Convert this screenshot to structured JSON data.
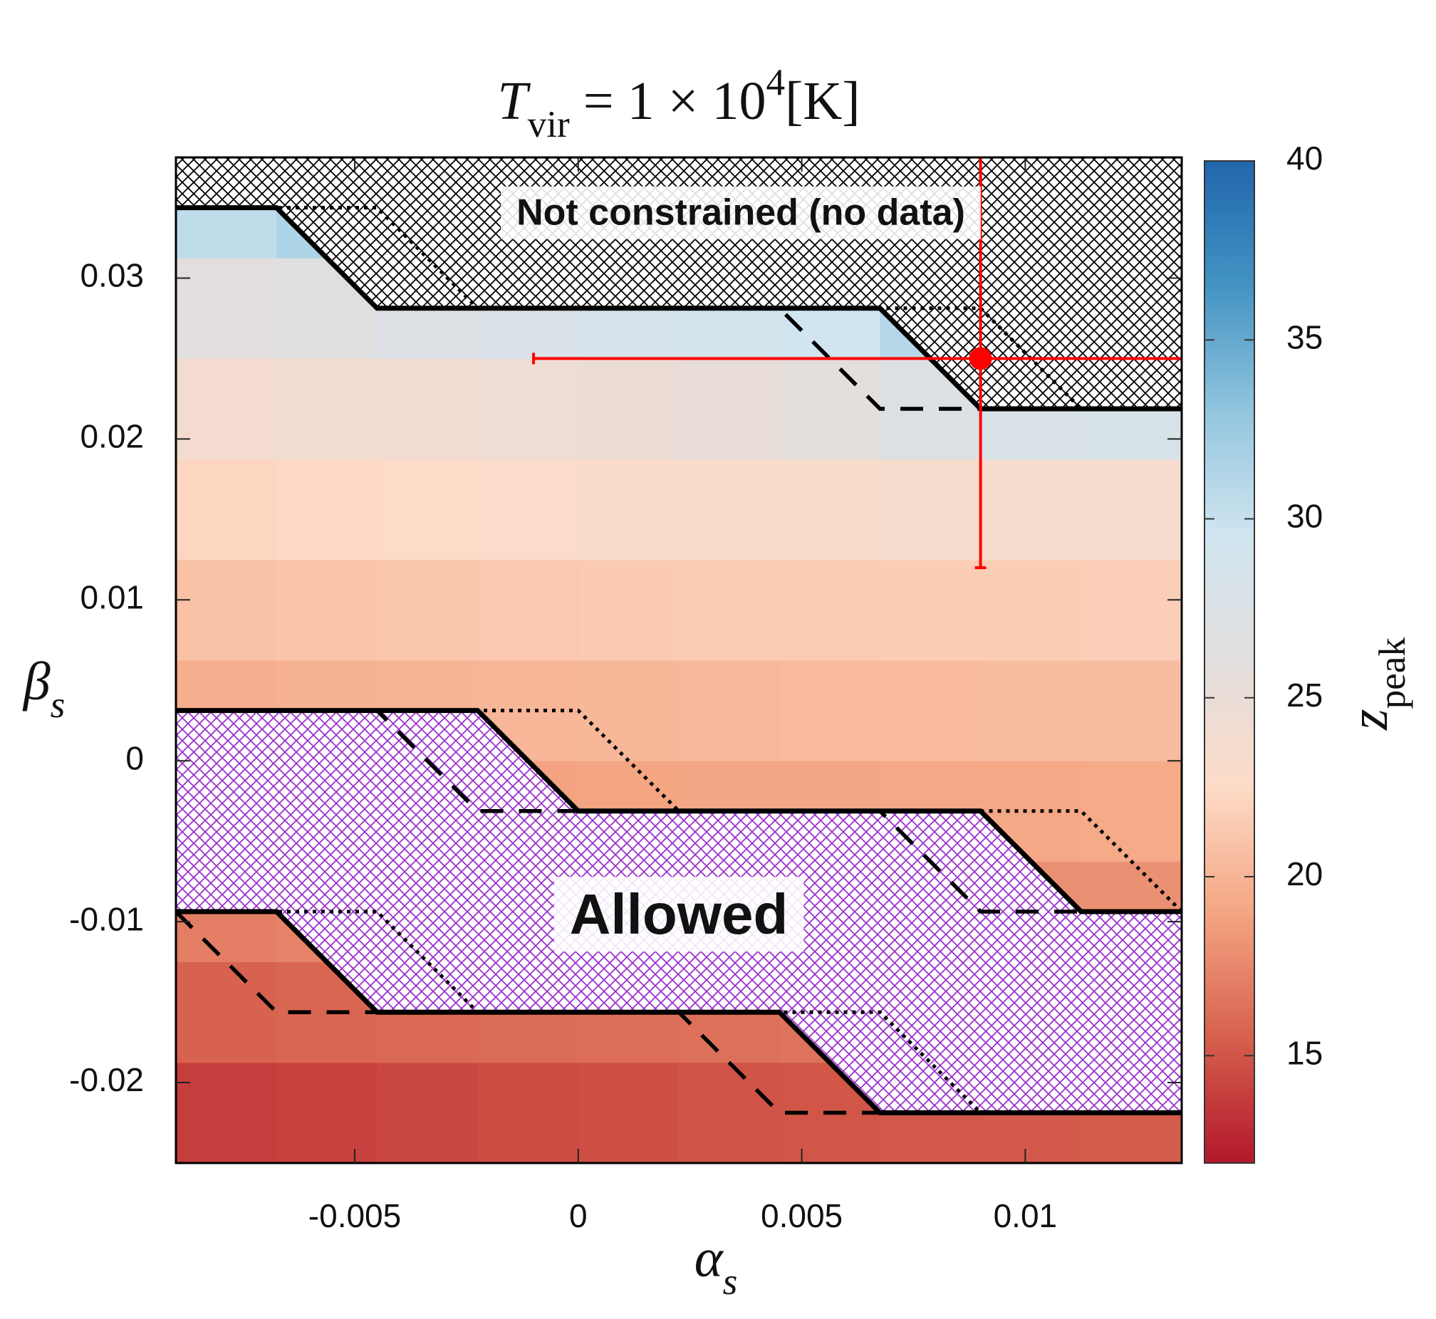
{
  "chart_data": {
    "type": "heatmap",
    "title_parts": [
      {
        "text": "T",
        "style": "italic"
      },
      {
        "text": "vir",
        "style": "sub"
      },
      {
        "text": " = 1 × 10"
      },
      {
        "text": "4",
        "style": "sup"
      },
      {
        "text": "[K]"
      }
    ],
    "xlabel_parts": [
      {
        "text": "α",
        "style": "italic"
      },
      {
        "text": "s",
        "style": "sub-italic"
      }
    ],
    "ylabel_parts": [
      {
        "text": "β",
        "style": "italic"
      },
      {
        "text": "s",
        "style": "sub-italic"
      }
    ],
    "colorbar_label_parts": [
      {
        "text": "z",
        "style": "italic"
      },
      {
        "text": "peak",
        "style": "sub"
      }
    ],
    "xlim": [
      -0.009,
      0.0135
    ],
    "ylim": [
      -0.025,
      0.0375
    ],
    "xticks": [
      -0.005,
      0,
      0.005,
      0.01
    ],
    "yticks": [
      -0.02,
      -0.01,
      0,
      0.01,
      0.02,
      0.03
    ],
    "xbins": [
      -0.009,
      -0.00675,
      -0.0045,
      -0.00225,
      0,
      0.00225,
      0.0045,
      0.00675,
      0.009,
      0.01125,
      0.0135
    ],
    "ybins": [
      -0.025,
      -0.01875,
      -0.0125,
      -0.00625,
      0,
      0.00625,
      0.0125,
      0.01875,
      0.025,
      0.03125,
      0.0375
    ],
    "z": [
      [
        13.8,
        14.0,
        14.3,
        14.5,
        14.7,
        14.9,
        15.0,
        15.1,
        15.2,
        15.3
      ],
      [
        15.6,
        15.8,
        16.0,
        16.1,
        16.2,
        16.3,
        16.4,
        16.5,
        16.6,
        16.6
      ],
      [
        17.0,
        17.2,
        17.4,
        17.5,
        17.6,
        17.7,
        17.8,
        17.9,
        18.0,
        18.0
      ],
      [
        18.4,
        18.6,
        18.8,
        18.9,
        19.0,
        19.1,
        19.1,
        19.2,
        19.2,
        19.3
      ],
      [
        19.6,
        19.8,
        20.0,
        20.1,
        20.2,
        20.3,
        20.4,
        20.4,
        20.5,
        20.5
      ],
      [
        20.8,
        21.0,
        21.2,
        21.3,
        21.4,
        21.5,
        21.5,
        21.6,
        21.6,
        21.7
      ],
      [
        22.2,
        22.4,
        22.6,
        22.8,
        23.0,
        23.1,
        23.2,
        23.4,
        23.6,
        23.7
      ],
      [
        23.8,
        24.0,
        24.2,
        24.5,
        24.8,
        25.2,
        25.8,
        27.0,
        28.0,
        28.2
      ],
      [
        26.0,
        26.5,
        27.2,
        28.0,
        28.5,
        29.0,
        29.5,
        31.0,
        30.0,
        30.0
      ],
      [
        30.5,
        31.5,
        30.0,
        30.0,
        30.0,
        30.0,
        30.0,
        30.0,
        30.0,
        30.0
      ]
    ],
    "clim": [
      12,
      40
    ],
    "cticks": [
      15,
      20,
      25,
      30,
      35,
      40
    ],
    "colormap": [
      "#b2182b",
      "#d6604d",
      "#f4a582",
      "#fddbc7",
      "#e2dedd",
      "#d1e5f0",
      "#92c5de",
      "#4393c3",
      "#2166ac"
    ],
    "lines": [
      {
        "style": "dotted",
        "color": "#000000",
        "x": [
          -0.009,
          -0.0045,
          -0.00225,
          0.009,
          0.01125,
          0.0135
        ],
        "y": [
          0.034375,
          0.034375,
          0.028125,
          0.028125,
          0.021875,
          0.021875
        ]
      },
      {
        "style": "dashed",
        "color": "#000000",
        "x": [
          -0.009,
          -0.00675,
          -0.0045,
          0.0045,
          0.00675,
          0.0135
        ],
        "y": [
          0.034375,
          0.034375,
          0.028125,
          0.028125,
          0.021875,
          0.021875
        ]
      },
      {
        "style": "solid",
        "color": "#000000",
        "hatch_above": "#000000",
        "x": [
          -0.009,
          -0.00675,
          -0.0045,
          0.00675,
          0.009,
          0.0135
        ],
        "y": [
          0.034375,
          0.034375,
          0.028125,
          0.028125,
          0.021875,
          0.021875
        ]
      },
      {
        "style": "dotted",
        "color": "#000000",
        "x": [
          -0.009,
          0,
          0.00225,
          0.01125,
          0.0135
        ],
        "y": [
          0.003125,
          0.003125,
          -0.003125,
          -0.003125,
          -0.009375
        ]
      },
      {
        "style": "dashed",
        "color": "#000000",
        "x": [
          -0.009,
          -0.0045,
          -0.00225,
          0.00675,
          0.009,
          0.0135
        ],
        "y": [
          0.003125,
          0.003125,
          -0.003125,
          -0.003125,
          -0.009375,
          -0.009375
        ]
      },
      {
        "style": "solid",
        "color": "#000000",
        "hatch_below": "#9a32cd",
        "x": [
          -0.009,
          -0.00225,
          0,
          0.009,
          0.01125,
          0.0135
        ],
        "y": [
          0.003125,
          0.003125,
          -0.003125,
          -0.003125,
          -0.009375,
          -0.009375
        ]
      },
      {
        "style": "dotted",
        "color": "#000000",
        "x": [
          -0.009,
          -0.0045,
          -0.00225,
          0.00675,
          0.009,
          0.0135
        ],
        "y": [
          -0.009375,
          -0.009375,
          -0.015625,
          -0.015625,
          -0.021875,
          -0.021875
        ]
      },
      {
        "style": "dashed",
        "color": "#000000",
        "x": [
          -0.009,
          -0.00675,
          0.00225,
          0.0045,
          0.0135
        ],
        "y": [
          -0.009375,
          -0.015625,
          -0.015625,
          -0.021875,
          -0.021875
        ]
      },
      {
        "style": "solid",
        "color": "#000000",
        "x": [
          -0.009,
          -0.00675,
          -0.0045,
          0.0045,
          0.00675,
          0.0135
        ],
        "y": [
          -0.009375,
          -0.009375,
          -0.015625,
          -0.015625,
          -0.021875,
          -0.021875
        ]
      }
    ],
    "points": [
      {
        "x": 0.009,
        "y": 0.025,
        "xerr": 0.01,
        "yerr": 0.013,
        "color": "#ff0000"
      }
    ],
    "annotations": [
      {
        "text": "Not constrained (no data)"
      },
      {
        "text": "Allowed"
      }
    ]
  }
}
